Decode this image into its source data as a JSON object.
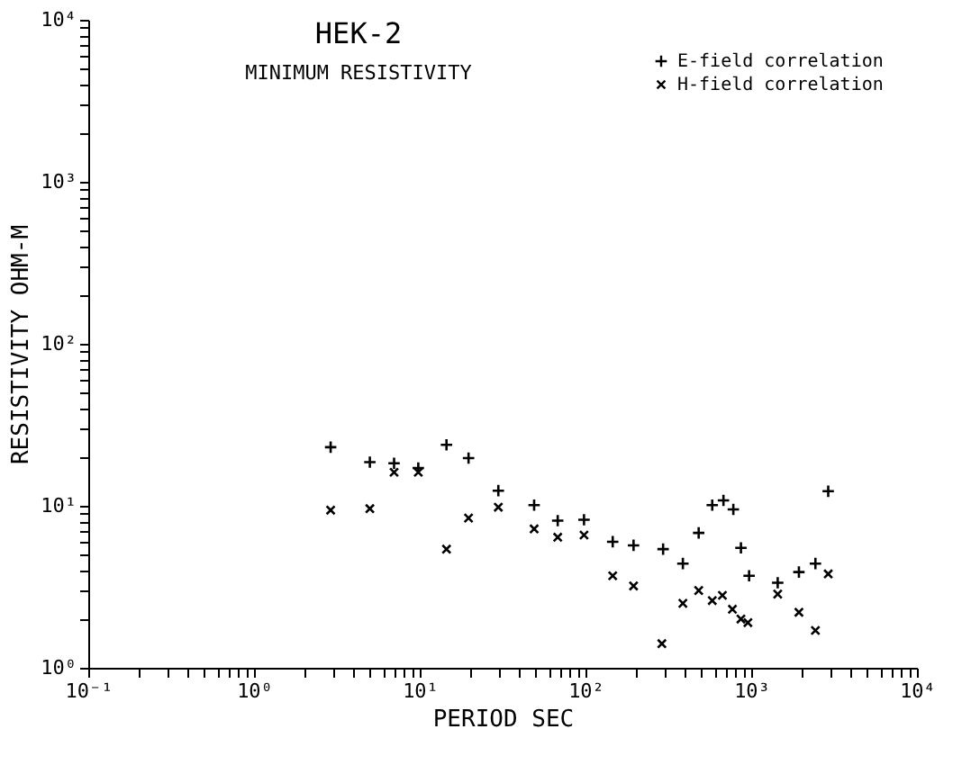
{
  "chart_data": {
    "type": "scatter",
    "title": "HEK-2",
    "subtitle": "MINIMUM RESISTIVITY",
    "xlabel": "PERIOD SEC",
    "ylabel": "RESISTIVITY OHM-M",
    "log": "xy",
    "grid": false,
    "legend": "top right",
    "xlim": [
      0.1,
      10000
    ],
    "ylim": [
      1,
      10000
    ],
    "xticks": [
      {
        "value": 0.1,
        "label": "10⁻¹"
      },
      {
        "value": 0.2,
        "label": null
      },
      {
        "value": 0.3,
        "label": null
      },
      {
        "value": 0.4,
        "label": null
      },
      {
        "value": 0.5,
        "label": null
      },
      {
        "value": 0.6,
        "label": null
      },
      {
        "value": 0.7,
        "label": null
      },
      {
        "value": 0.8,
        "label": null
      },
      {
        "value": 0.9,
        "label": null
      },
      {
        "value": 1,
        "label": "10⁰"
      },
      {
        "value": 2,
        "label": null
      },
      {
        "value": 3,
        "label": null
      },
      {
        "value": 4,
        "label": null
      },
      {
        "value": 5,
        "label": null
      },
      {
        "value": 6,
        "label": null
      },
      {
        "value": 7,
        "label": null
      },
      {
        "value": 8,
        "label": null
      },
      {
        "value": 9,
        "label": null
      },
      {
        "value": 10,
        "label": "10¹"
      },
      {
        "value": 20,
        "label": null
      },
      {
        "value": 30,
        "label": null
      },
      {
        "value": 40,
        "label": null
      },
      {
        "value": 50,
        "label": null
      },
      {
        "value": 60,
        "label": null
      },
      {
        "value": 70,
        "label": null
      },
      {
        "value": 80,
        "label": null
      },
      {
        "value": 90,
        "label": null
      },
      {
        "value": 100,
        "label": "10²"
      },
      {
        "value": 200,
        "label": null
      },
      {
        "value": 300,
        "label": null
      },
      {
        "value": 400,
        "label": null
      },
      {
        "value": 500,
        "label": null
      },
      {
        "value": 600,
        "label": null
      },
      {
        "value": 700,
        "label": null
      },
      {
        "value": 800,
        "label": null
      },
      {
        "value": 900,
        "label": null
      },
      {
        "value": 1000,
        "label": "10³"
      },
      {
        "value": 2000,
        "label": null
      },
      {
        "value": 3000,
        "label": null
      },
      {
        "value": 4000,
        "label": null
      },
      {
        "value": 5000,
        "label": null
      },
      {
        "value": 6000,
        "label": null
      },
      {
        "value": 7000,
        "label": null
      },
      {
        "value": 8000,
        "label": null
      },
      {
        "value": 9000,
        "label": null
      },
      {
        "value": 10000,
        "label": "10⁴"
      }
    ],
    "yticks": [
      {
        "value": 1,
        "label": "10⁰"
      },
      {
        "value": 2,
        "label": null
      },
      {
        "value": 3,
        "label": null
      },
      {
        "value": 4,
        "label": null
      },
      {
        "value": 5,
        "label": null
      },
      {
        "value": 6,
        "label": null
      },
      {
        "value": 7,
        "label": null
      },
      {
        "value": 8,
        "label": null
      },
      {
        "value": 9,
        "label": null
      },
      {
        "value": 10,
        "label": "10¹"
      },
      {
        "value": 20,
        "label": null
      },
      {
        "value": 30,
        "label": null
      },
      {
        "value": 40,
        "label": null
      },
      {
        "value": 50,
        "label": null
      },
      {
        "value": 60,
        "label": null
      },
      {
        "value": 70,
        "label": null
      },
      {
        "value": 80,
        "label": null
      },
      {
        "value": 90,
        "label": null
      },
      {
        "value": 100,
        "label": "10²"
      },
      {
        "value": 200,
        "label": null
      },
      {
        "value": 300,
        "label": null
      },
      {
        "value": 400,
        "label": null
      },
      {
        "value": 500,
        "label": null
      },
      {
        "value": 600,
        "label": null
      },
      {
        "value": 700,
        "label": null
      },
      {
        "value": 800,
        "label": null
      },
      {
        "value": 900,
        "label": null
      },
      {
        "value": 1000,
        "label": "10³"
      },
      {
        "value": 2000,
        "label": null
      },
      {
        "value": 3000,
        "label": null
      },
      {
        "value": 4000,
        "label": null
      },
      {
        "value": 5000,
        "label": null
      },
      {
        "value": 6000,
        "label": null
      },
      {
        "value": 7000,
        "label": null
      },
      {
        "value": 8000,
        "label": null
      },
      {
        "value": 9000,
        "label": null
      },
      {
        "value": 10000,
        "label": "10⁴"
      }
    ],
    "series": [
      {
        "name": "E-field correlation",
        "color": "#000000",
        "marker": "cross",
        "x": [
          2.9,
          5,
          7,
          9.8,
          14.5,
          19.7,
          29.8,
          49,
          68,
          98,
          146,
          195,
          294,
          387,
          482,
          582,
          680,
          780,
          867,
          971,
          1445,
          1940,
          2440,
          2915
        ],
        "values": [
          23,
          18.6,
          18.3,
          17.1,
          23.8,
          19.7,
          12.4,
          10.1,
          8.1,
          8.2,
          6,
          5.7,
          5.4,
          4.4,
          6.8,
          10.1,
          10.8,
          9.5,
          5.5,
          3.7,
          3.35,
          3.9,
          4.4,
          12.3
        ]
      },
      {
        "name": "H-field correlation",
        "color": "#000000",
        "marker": "x",
        "x": [
          2.9,
          5,
          7,
          9.8,
          14.5,
          19.7,
          29.8,
          49,
          68,
          98,
          146,
          195,
          289,
          387,
          482,
          582,
          670,
          770,
          867,
          955,
          1445,
          1940,
          2440,
          2915
        ],
        "values": [
          9.4,
          9.6,
          16.1,
          16.1,
          5.4,
          8.4,
          9.8,
          7.2,
          6.4,
          6.6,
          3.7,
          3.2,
          1.41,
          2.5,
          3,
          2.6,
          2.8,
          2.3,
          2,
          1.9,
          2.85,
          2.2,
          1.7,
          3.8
        ]
      }
    ]
  }
}
